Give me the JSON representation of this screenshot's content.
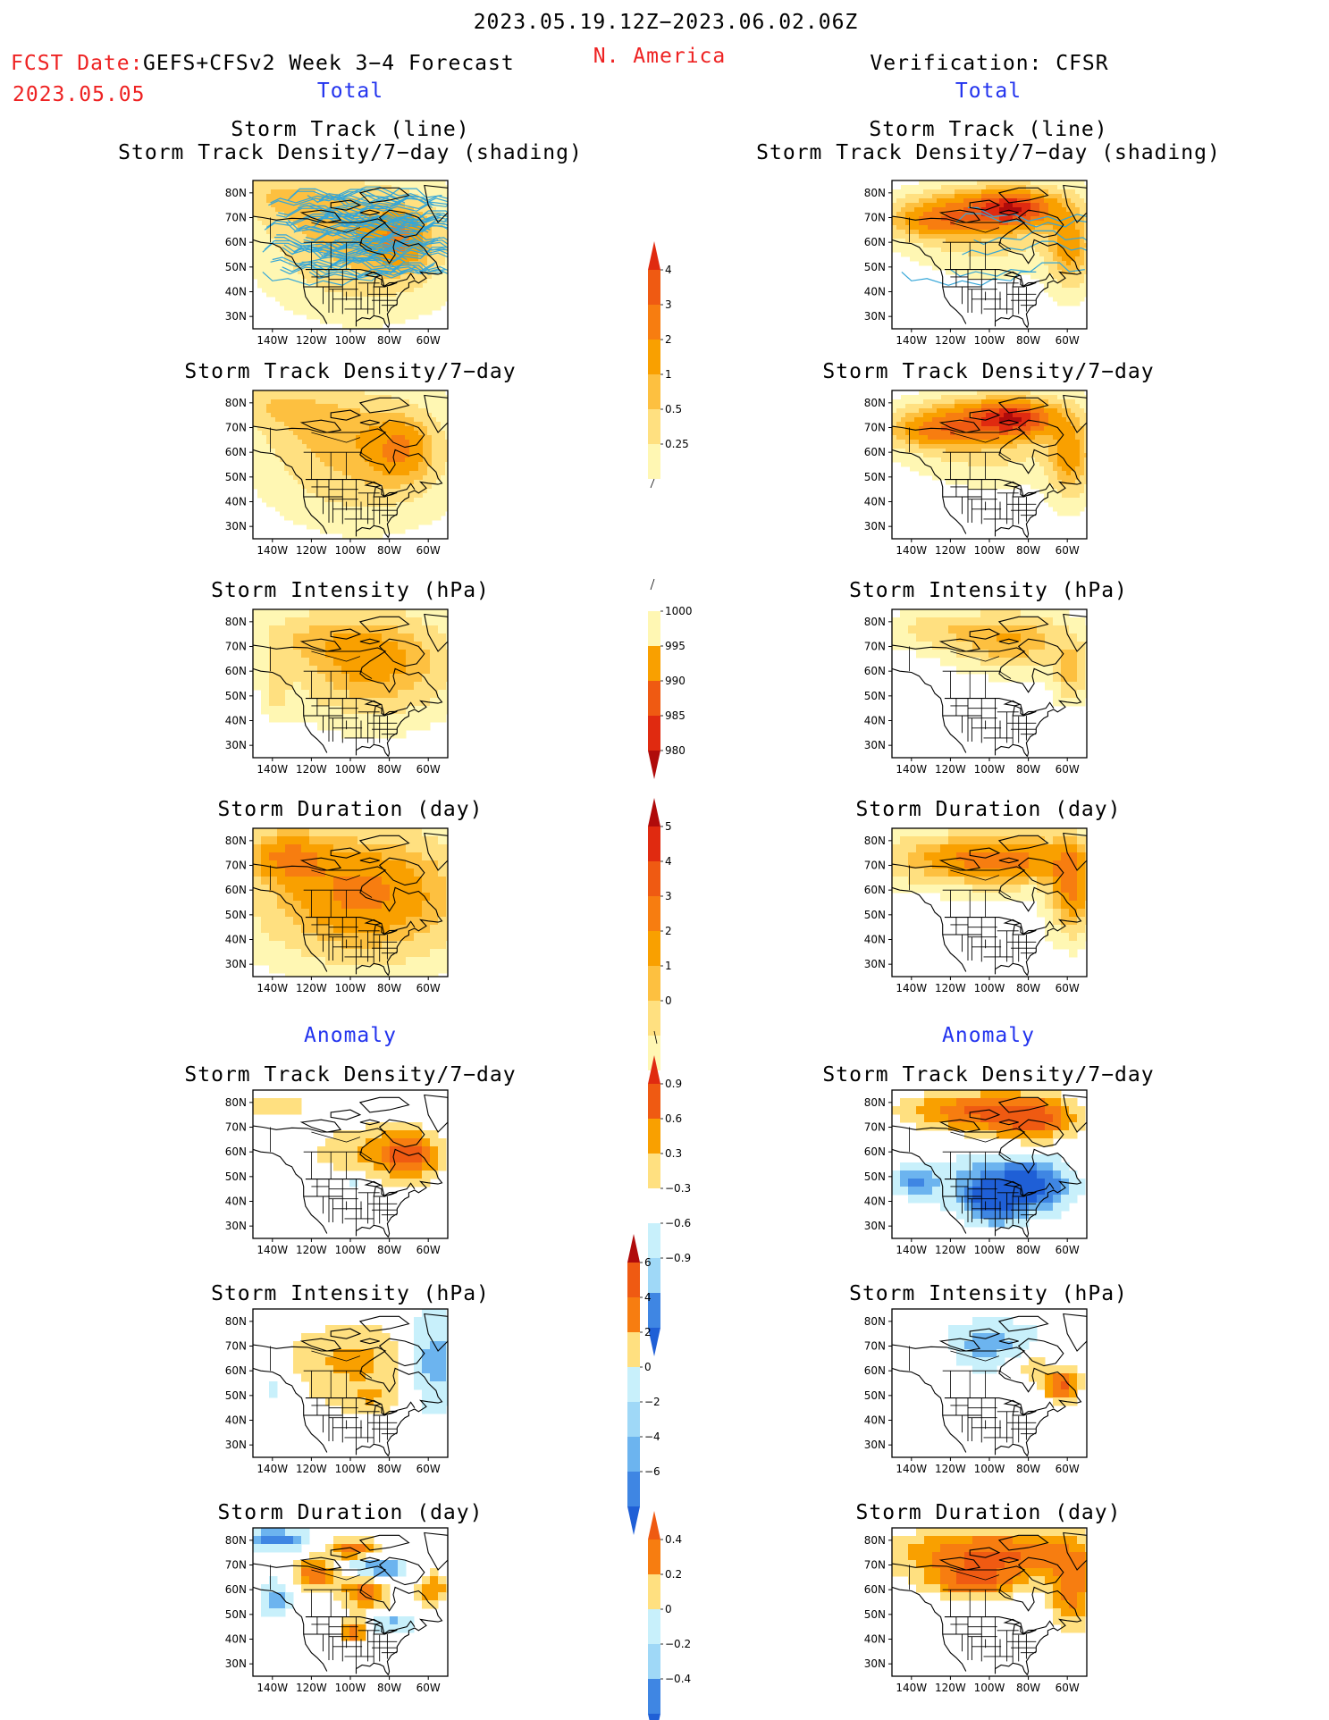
{
  "header": {
    "period": "2023.05.19.12Z−2023.06.02.06Z",
    "fcst_label": "FCST Date:",
    "model": "GEFS+CFSv2 Week 3−4 Forecast",
    "fcst_date": "2023.05.05",
    "region": "N. America",
    "verification": "Verification: CFSR"
  },
  "sections": {
    "total": "Total",
    "anomaly": "Anomaly"
  },
  "panel_titles": {
    "track_line": "Storm Track (line)",
    "track_shading": "Storm Track Density/7−day (shading)",
    "density": "Storm Track Density/7−day",
    "intensity": "Storm Intensity (hPa)",
    "duration": "Storm Duration (day)"
  },
  "axis": {
    "lat_labels": [
      "80N",
      "70N",
      "60N",
      "50N",
      "40N",
      "30N"
    ],
    "lon_labels": [
      "140W",
      "120W",
      "100W",
      "80W",
      "60W"
    ]
  },
  "colorbars": {
    "density_total": [
      "4",
      "3",
      "2",
      "1",
      "0.5",
      "0.25"
    ],
    "intensity_total": [
      "1000",
      "995",
      "990",
      "985",
      "980"
    ],
    "duration_total": [
      "5",
      "4",
      "3",
      "2",
      "1",
      "0"
    ],
    "density_anomaly": [
      "0.9",
      "0.6",
      "0.3",
      "−0.3",
      "−0.6",
      "−0.9"
    ],
    "intensity_anomaly": [
      "6",
      "4",
      "2",
      "0",
      "−2",
      "−4",
      "−6"
    ],
    "duration_anomaly": [
      "0.4",
      "0.2",
      "0",
      "−0.2",
      "−0.4"
    ]
  },
  "colors": {
    "warm": [
      "#fff7b3",
      "#ffe080",
      "#fdc040",
      "#f9a000",
      "#f77d10",
      "#ef5a12",
      "#e02a10",
      "#b00b0b"
    ],
    "cool": [
      "#c8f0fb",
      "#9fd8f7",
      "#6cb4ef",
      "#3f86e3",
      "#1f5fd6"
    ],
    "track_lines": "#35a6d8",
    "header_red": "#ee2222",
    "header_blue": "#2233ee"
  }
}
